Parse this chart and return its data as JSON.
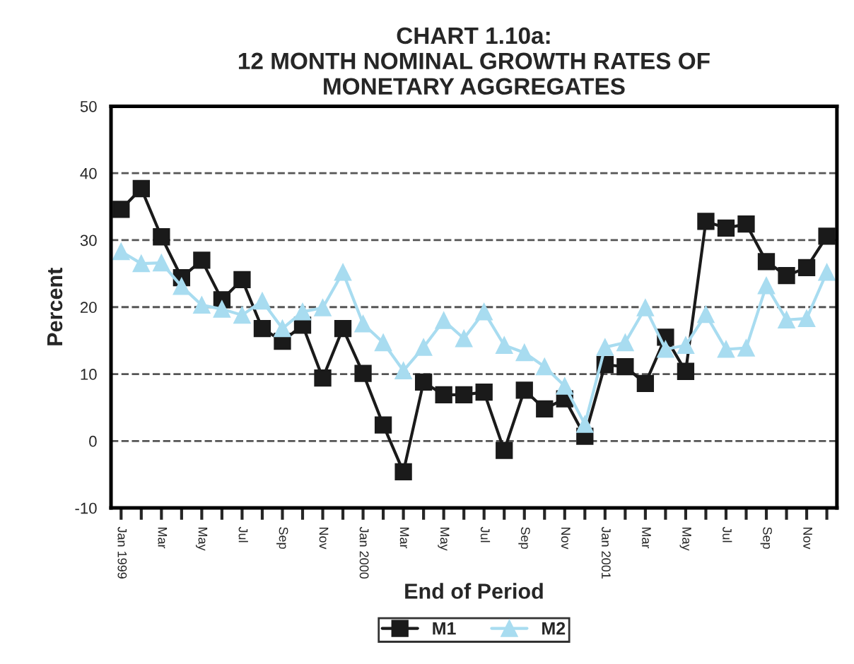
{
  "chart_data": {
    "type": "line",
    "title": "CHART 1.10a:\n12 MONTH NOMINAL GROWTH RATES OF\nMONETARY AGGREGATES",
    "xlabel": "End of Period",
    "ylabel": "Percent",
    "categories": [
      "Jan 1999",
      null,
      "Mar",
      null,
      "May",
      null,
      "Jul",
      null,
      "Sep",
      null,
      "Nov",
      null,
      "Jan 2000",
      null,
      "Mar",
      null,
      "May",
      null,
      "Jul",
      null,
      "Sep",
      null,
      "Nov",
      null,
      "Jan 2001",
      null,
      "Mar",
      null,
      "May",
      null,
      "Jul",
      null,
      "Sep",
      null,
      "Nov",
      null
    ],
    "series": [
      {
        "name": "M1",
        "color": "#1a1a1a",
        "marker": "square",
        "values": [
          34.6,
          37.7,
          30.5,
          24.4,
          27.0,
          21.1,
          24.1,
          16.8,
          14.9,
          17.3,
          9.4,
          16.8,
          10.1,
          2.4,
          -4.6,
          8.8,
          6.9,
          6.9,
          7.3,
          -1.4,
          7.6,
          4.8,
          6.3,
          0.7,
          11.4,
          11.1,
          8.6,
          15.5,
          10.4,
          32.8,
          31.8,
          32.4,
          26.8,
          24.7,
          25.9,
          30.6
        ]
      },
      {
        "name": "M2",
        "color": "#a8dcf0",
        "marker": "triangle",
        "values": [
          28.3,
          26.5,
          26.6,
          23.1,
          20.3,
          19.7,
          18.8,
          20.9,
          16.8,
          19.3,
          19.9,
          25.2,
          17.5,
          14.7,
          10.5,
          14.0,
          18.0,
          15.3,
          19.3,
          14.3,
          13.2,
          11.1,
          8.2,
          2.5,
          14.0,
          14.7,
          19.9,
          13.7,
          14.3,
          18.9,
          13.7,
          13.9,
          23.2,
          18.1,
          18.3,
          25.2
        ]
      }
    ],
    "ylim": [
      -10,
      50
    ],
    "yticks": [
      -10,
      0,
      10,
      20,
      30,
      40,
      50
    ],
    "grid": "y",
    "legend": "bottom",
    "line_style": "solid"
  }
}
